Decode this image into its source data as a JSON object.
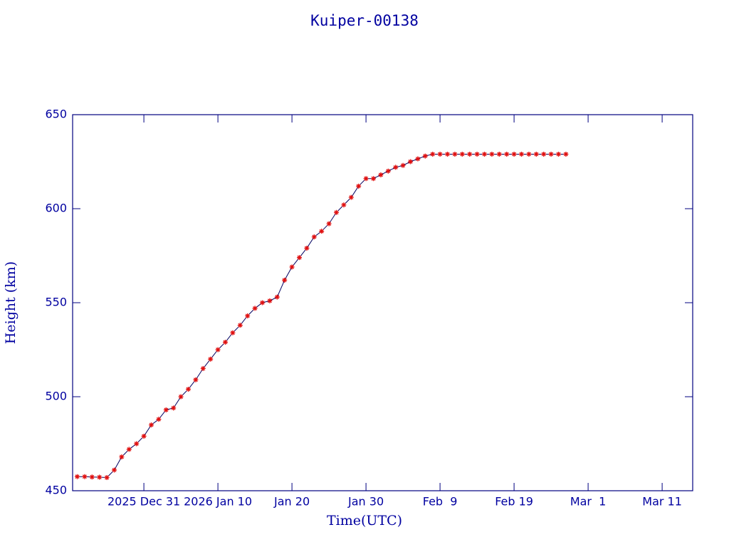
{
  "chart_data": {
    "type": "line",
    "title": "Kuiper-00138",
    "xlabel": "Time(UTC)",
    "ylabel": "Height (km)",
    "x": [
      "2025-12-22",
      "2025-12-23",
      "2025-12-24",
      "2025-12-25",
      "2025-12-26",
      "2025-12-27",
      "2025-12-28",
      "2025-12-29",
      "2025-12-30",
      "2025-12-31",
      "2026-01-01",
      "2026-01-02",
      "2026-01-03",
      "2026-01-04",
      "2026-01-05",
      "2026-01-06",
      "2026-01-07",
      "2026-01-08",
      "2026-01-09",
      "2026-01-10",
      "2026-01-11",
      "2026-01-12",
      "2026-01-13",
      "2026-01-14",
      "2026-01-15",
      "2026-01-16",
      "2026-01-17",
      "2026-01-18",
      "2026-01-19",
      "2026-01-20",
      "2026-01-21",
      "2026-01-22",
      "2026-01-23",
      "2026-01-24",
      "2026-01-25",
      "2026-01-26",
      "2026-01-27",
      "2026-01-28",
      "2026-01-29",
      "2026-01-30",
      "2026-01-31",
      "2026-02-01",
      "2026-02-02",
      "2026-02-03",
      "2026-02-04",
      "2026-02-05",
      "2026-02-06",
      "2026-02-07",
      "2026-02-08",
      "2026-02-09",
      "2026-02-10",
      "2026-02-11",
      "2026-02-12",
      "2026-02-13",
      "2026-02-14",
      "2026-02-15",
      "2026-02-16",
      "2026-02-17",
      "2026-02-18",
      "2026-02-19",
      "2026-02-20",
      "2026-02-21",
      "2026-02-22",
      "2026-02-23",
      "2026-02-24",
      "2026-02-25",
      "2026-02-26"
    ],
    "series": [
      {
        "name": "Height",
        "color": "#e01010",
        "line_color": "#000060",
        "values": [
          457.5,
          457.5,
          457.3,
          457.2,
          457,
          461,
          468,
          472,
          475,
          479,
          485,
          488,
          493,
          494,
          500,
          504,
          509,
          515,
          520,
          525,
          529,
          534,
          538,
          543,
          547,
          550,
          551,
          553,
          562,
          569,
          574,
          579,
          585,
          588,
          592,
          598,
          602,
          606,
          612,
          616,
          616,
          618,
          620,
          622,
          623,
          625,
          626.5,
          628,
          629,
          629,
          629,
          629,
          629,
          629,
          629,
          629,
          629,
          629,
          629,
          629,
          629,
          629,
          629,
          629,
          629,
          629,
          629
        ]
      }
    ],
    "xlim": [
      "2025-12-21T09:00",
      "2026-03-15T03:00"
    ],
    "xticks": [
      {
        "value": "2025-12-31",
        "label": "2025 Dec 31"
      },
      {
        "value": "2026-01-10",
        "label": "2026 Jan 10"
      },
      {
        "value": "2026-01-20",
        "label": "Jan 20"
      },
      {
        "value": "2026-01-30",
        "label": "Jan 30"
      },
      {
        "value": "2026-02-09",
        "label": "Feb  9"
      },
      {
        "value": "2026-02-19",
        "label": "Feb 19"
      },
      {
        "value": "2026-03-01",
        "label": "Mar  1"
      },
      {
        "value": "2026-03-11",
        "label": "Mar 11"
      }
    ],
    "ylim": [
      450,
      650
    ],
    "yticks": [
      450,
      500,
      550,
      600,
      650
    ]
  }
}
